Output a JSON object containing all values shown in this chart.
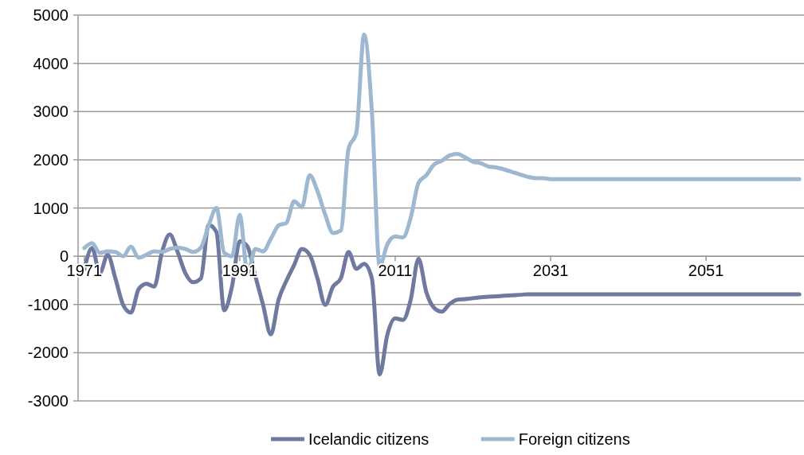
{
  "chart_data": {
    "type": "line",
    "x": [
      1971,
      1972,
      1973,
      1974,
      1975,
      1976,
      1977,
      1978,
      1979,
      1980,
      1981,
      1982,
      1983,
      1984,
      1985,
      1986,
      1987,
      1988,
      1989,
      1990,
      1991,
      1992,
      1993,
      1994,
      1995,
      1996,
      1997,
      1998,
      1999,
      2000,
      2001,
      2002,
      2003,
      2004,
      2005,
      2006,
      2007,
      2008,
      2009,
      2010,
      2011,
      2012,
      2013,
      2014,
      2015,
      2016,
      2017,
      2018,
      2019,
      2020,
      2021,
      2022,
      2023,
      2024,
      2025,
      2026,
      2027,
      2028,
      2029,
      2030,
      2031,
      2032,
      2033,
      2034,
      2035,
      2036,
      2037,
      2038,
      2039,
      2040,
      2041,
      2042,
      2043,
      2044,
      2045,
      2046,
      2047,
      2048,
      2049,
      2050,
      2051,
      2052,
      2053,
      2054,
      2055,
      2056,
      2057,
      2058,
      2059,
      2060,
      2061,
      2062,
      2063
    ],
    "series": [
      {
        "name": "Icelandic citizens",
        "color": "#7079a0",
        "values": [
          -270,
          170,
          -350,
          30,
          -460,
          -1010,
          -1170,
          -680,
          -570,
          -630,
          90,
          450,
          90,
          -350,
          -540,
          -460,
          650,
          500,
          -1120,
          -630,
          310,
          200,
          -410,
          -1010,
          -1620,
          -900,
          -510,
          -180,
          150,
          30,
          -460,
          -1010,
          -630,
          -460,
          90,
          -260,
          -160,
          -460,
          -2450,
          -1620,
          -1290,
          -1320,
          -900,
          -50,
          -740,
          -1070,
          -1150,
          -990,
          -900,
          -890,
          -870,
          -850,
          -840,
          -830,
          -820,
          -810,
          -800,
          -790,
          -790,
          -790,
          -790,
          -790,
          -790,
          -790,
          -790,
          -790,
          -790,
          -790,
          -790,
          -790,
          -790,
          -790,
          -790,
          -790,
          -790,
          -790,
          -790,
          -790,
          -790,
          -790,
          -790,
          -790,
          -790,
          -790,
          -790,
          -790,
          -790,
          -790,
          -790,
          -790,
          -790,
          -790,
          -790
        ]
      },
      {
        "name": "Foreign citizens",
        "color": "#9db8d0",
        "values": [
          170,
          270,
          70,
          100,
          90,
          0,
          200,
          -30,
          30,
          100,
          90,
          150,
          180,
          150,
          90,
          180,
          640,
          1000,
          70,
          0,
          860,
          -350,
          150,
          100,
          360,
          640,
          690,
          1140,
          1020,
          1680,
          1350,
          860,
          480,
          530,
          2230,
          2560,
          4600,
          3000,
          -200,
          250,
          410,
          390,
          800,
          1520,
          1680,
          1900,
          1980,
          2090,
          2120,
          2050,
          1960,
          1930,
          1860,
          1840,
          1800,
          1750,
          1700,
          1650,
          1620,
          1620,
          1600,
          1600,
          1600,
          1600,
          1600,
          1600,
          1600,
          1600,
          1600,
          1600,
          1600,
          1600,
          1600,
          1600,
          1600,
          1600,
          1600,
          1600,
          1600,
          1600,
          1600,
          1600,
          1600,
          1600,
          1600,
          1600,
          1600,
          1600,
          1600,
          1600,
          1600,
          1600,
          1600
        ]
      }
    ],
    "xlim": [
      1970.2,
      2063.6
    ],
    "xticks": [
      1971,
      1991,
      2011,
      2031,
      2051
    ],
    "ylim": [
      -3000,
      5000
    ],
    "yticks": [
      -3000,
      -2000,
      -1000,
      0,
      1000,
      2000,
      3000,
      4000,
      5000
    ],
    "grid": "y",
    "legend": "bottom"
  }
}
